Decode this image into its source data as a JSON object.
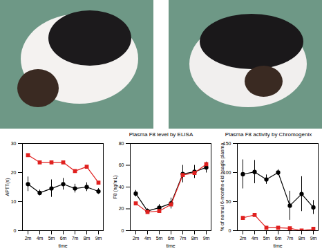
{
  "chart_data": [
    {
      "type": "line",
      "x_label": "time",
      "y_label": "APTT(s)",
      "categories": [
        "2m",
        "4m",
        "5m",
        "6m",
        "7m",
        "8m",
        "9m"
      ],
      "ylim": [
        0,
        30
      ],
      "yticks": [
        0,
        10,
        20,
        30
      ],
      "series": [
        {
          "color": "#000000",
          "marker": "circle",
          "values": [
            16,
            13,
            14.5,
            16,
            14.5,
            15,
            13.5
          ],
          "errors": [
            2.5,
            1,
            3,
            2,
            1.5,
            1.5,
            1
          ]
        },
        {
          "color": "#e0201f",
          "marker": "square",
          "values": [
            26,
            23.5,
            23.5,
            23.5,
            20.5,
            22,
            16.5
          ]
        }
      ]
    },
    {
      "type": "line",
      "title": "Plasma F8 level by ELISA",
      "x_label": "time",
      "y_label": "F8 (ng/mL)",
      "categories": [
        "2m",
        "4m",
        "5m",
        "6m",
        "7m",
        "8m",
        "9m"
      ],
      "ylim": [
        0,
        80
      ],
      "yticks": [
        0,
        20,
        40,
        60,
        80
      ],
      "series": [
        {
          "color": "#000000",
          "marker": "circle",
          "values": [
            34,
            18,
            21,
            25,
            52,
            54,
            58
          ],
          "errors": [
            3,
            2,
            3,
            5,
            8,
            6,
            5
          ]
        },
        {
          "color": "#e0201f",
          "marker": "square",
          "values": [
            25,
            17,
            18,
            24,
            51,
            53,
            61
          ]
        }
      ]
    },
    {
      "type": "line",
      "title": "Plasma F8 activity by Chromogenix",
      "x_label": "time",
      "y_label": "% of normal 6-months-old beagle plasma",
      "categories": [
        "2m",
        "4m",
        "5m",
        "6m",
        "7m",
        "8m",
        "9m"
      ],
      "ylim": [
        0,
        150
      ],
      "yticks": [
        0,
        50,
        100,
        150
      ],
      "series": [
        {
          "color": "#000000",
          "marker": "circle",
          "values": [
            97,
            101,
            88,
            100,
            43,
            63,
            40
          ],
          "errors": [
            25,
            20,
            8,
            5,
            25,
            30,
            12
          ]
        },
        {
          "color": "#e0201f",
          "marker": "square",
          "values": [
            22,
            27,
            5,
            5,
            4,
            0,
            3
          ]
        }
      ]
    }
  ]
}
